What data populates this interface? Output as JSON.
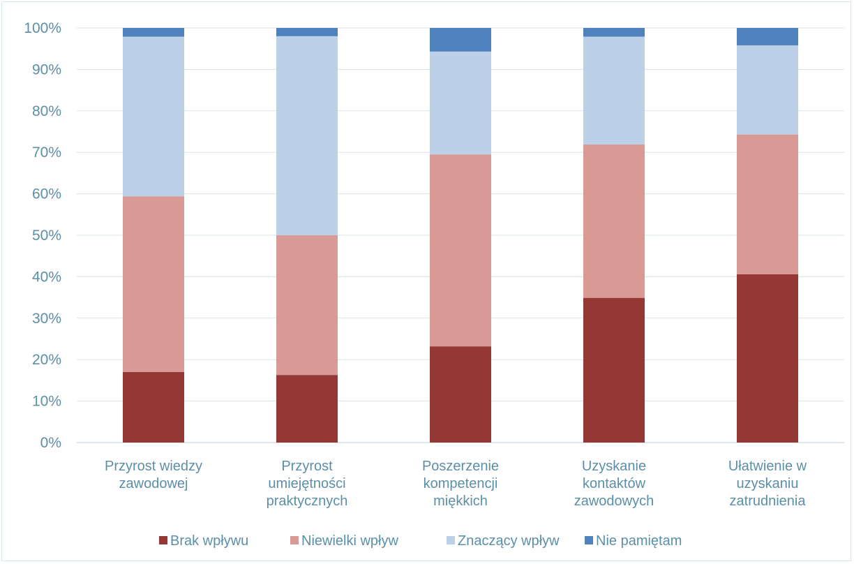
{
  "chart_data": {
    "type": "bar",
    "stacked": true,
    "categories": [
      [
        "Przyrost wiedzy",
        "zawodowej"
      ],
      [
        "Przyrost",
        "umiejętności",
        "praktycznych"
      ],
      [
        "Poszerzenie",
        "kompetencji",
        "miękkich"
      ],
      [
        "Uzyskanie",
        "kontaktów",
        "zawodowych"
      ],
      [
        "Ułatwienie w",
        "uzyskaniu",
        "zatrudnienia"
      ]
    ],
    "series": [
      {
        "name": "Brak wpływu",
        "color": "#953735",
        "values": [
          17.0,
          16.3,
          23.2,
          34.9,
          40.6
        ]
      },
      {
        "name": "Niewielki wpływ",
        "color": "#d99a96",
        "values": [
          42.4,
          33.7,
          46.3,
          37.0,
          33.7
        ]
      },
      {
        "name": "Znaczący wpływ",
        "color": "#bcd0e8",
        "values": [
          38.5,
          48.0,
          24.8,
          26.0,
          21.5
        ]
      },
      {
        "name": "Nie pamiętam",
        "color": "#4f81bd",
        "values": [
          2.1,
          2.0,
          5.7,
          2.1,
          4.2
        ]
      }
    ],
    "yticks": [
      "0%",
      "10%",
      "20%",
      "30%",
      "40%",
      "50%",
      "60%",
      "70%",
      "80%",
      "90%",
      "100%"
    ],
    "ylim": [
      0,
      100
    ],
    "grid": true,
    "legend": "bottom",
    "xlabel": "",
    "ylabel": ""
  }
}
